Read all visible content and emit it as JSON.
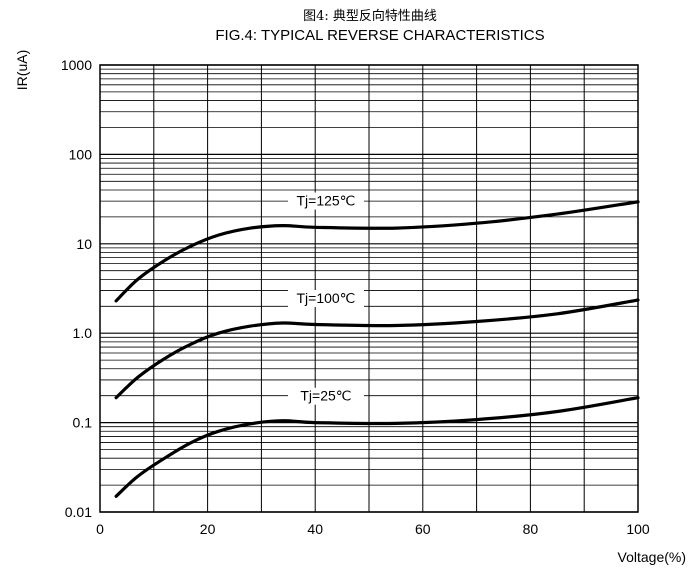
{
  "chart_data": {
    "type": "line",
    "title": "图4: 典型反向特性曲线",
    "subtitle": "FIG.4:  TYPICAL REVERSE CHARACTERISTICS",
    "xlabel": "Voltage(%)",
    "ylabel": "IR(uA)",
    "xlim": [
      0,
      100
    ],
    "ylim": [
      0.01,
      1000
    ],
    "yscale": "log",
    "grid": true,
    "x_ticks": [
      0,
      20,
      40,
      60,
      80,
      100
    ],
    "x_tick_labels": [
      "0",
      "20",
      "40",
      "60",
      "80",
      "100"
    ],
    "y_ticks": [
      0.01,
      0.1,
      1,
      10,
      100,
      1000
    ],
    "y_tick_labels": [
      "0.01",
      "0.1",
      "1.0",
      "10",
      "100",
      "1000"
    ],
    "series": [
      {
        "name": "Tj=125℃",
        "x": [
          3,
          7,
          12,
          17,
          22,
          28,
          34,
          40,
          55,
          70,
          85,
          100
        ],
        "values": [
          2.3,
          4.0,
          6.5,
          9.5,
          12.5,
          15.0,
          16.0,
          15.3,
          15.0,
          17.0,
          21.5,
          29.5
        ]
      },
      {
        "name": "Tj=100℃",
        "x": [
          3,
          7,
          12,
          17,
          22,
          28,
          34,
          40,
          55,
          70,
          85,
          100
        ],
        "values": [
          0.19,
          0.32,
          0.52,
          0.76,
          1.0,
          1.2,
          1.3,
          1.25,
          1.22,
          1.35,
          1.65,
          2.35
        ]
      },
      {
        "name": "Tj=25℃",
        "x": [
          3,
          7,
          12,
          17,
          22,
          28,
          34,
          40,
          55,
          70,
          85,
          100
        ],
        "values": [
          0.015,
          0.025,
          0.04,
          0.06,
          0.08,
          0.097,
          0.105,
          0.1,
          0.098,
          0.108,
          0.133,
          0.19
        ]
      }
    ]
  }
}
